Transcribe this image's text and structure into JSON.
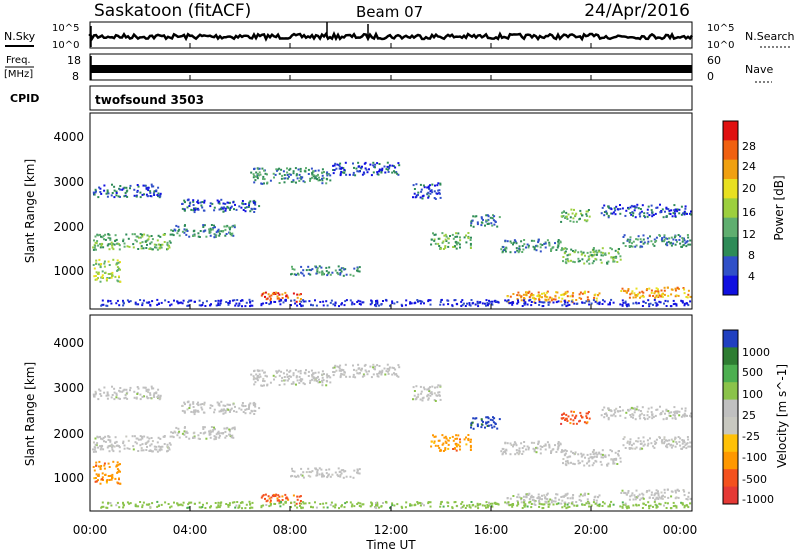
{
  "header": {
    "site": "Saskatoon (fitACF)",
    "beam": "Beam 07",
    "date": "24/Apr/2016"
  },
  "strip_panels": {
    "nsky": {
      "left_label": "N.Sky",
      "right_label": "N.Search",
      "tick_top": "10^5",
      "tick_bottom": "10^0",
      "right_tick_top": "10^5",
      "right_tick_bottom": "10^0"
    },
    "freq": {
      "left_label_line1": "Freq.",
      "left_label_line2": "[MHz]",
      "left_tick_top": "18",
      "left_tick_bottom": "8",
      "right_label": "Nave",
      "right_tick_top": "60",
      "right_tick_bottom": "0"
    },
    "cpid": {
      "label": "CPID",
      "program": "twofsound 3503"
    }
  },
  "colors": {
    "power_scale": [
      "#1010e0",
      "#3050c8",
      "#2e8b57",
      "#5fae6f",
      "#9ccf3e",
      "#e8e020",
      "#f0a010",
      "#f06010",
      "#e01010"
    ],
    "velocity_scale": [
      "#2040c0",
      "#2e7d32",
      "#4caf50",
      "#8bc34a",
      "#c0c0c0",
      "#c8c8c0",
      "#ffc107",
      "#ff9800",
      "#f4511e",
      "#e53935"
    ]
  },
  "chart_data": [
    {
      "type": "heatmap",
      "panel": "power",
      "ylabel": "Slant Range [km]",
      "colorbar_label": "Power [dB]",
      "yticks": [
        "1000",
        "2000",
        "3000",
        "4000"
      ],
      "colorbar_ticks": [
        "4",
        "8",
        "12",
        "16",
        "20",
        "24",
        "28"
      ],
      "ylim": [
        200,
        4500
      ],
      "colorbar_range": [
        0,
        30
      ],
      "x_range_hours": [
        0,
        24
      ]
    },
    {
      "type": "heatmap",
      "panel": "velocity",
      "ylabel": "Slant Range [km]",
      "colorbar_label": "Velocity [m s^-1]",
      "yticks": [
        "1000",
        "2000",
        "3000",
        "4000"
      ],
      "colorbar_ticks": [
        "1000",
        "500",
        "100",
        "25",
        "-25",
        "-100",
        "-500",
        "-1000"
      ],
      "ylim": [
        200,
        4500
      ],
      "x_range_hours": [
        0,
        24
      ]
    }
  ],
  "xaxis": {
    "label": "Time UT",
    "ticks": [
      "00:00",
      "04:00",
      "08:00",
      "12:00",
      "16:00",
      "20:00",
      "00:00"
    ]
  }
}
